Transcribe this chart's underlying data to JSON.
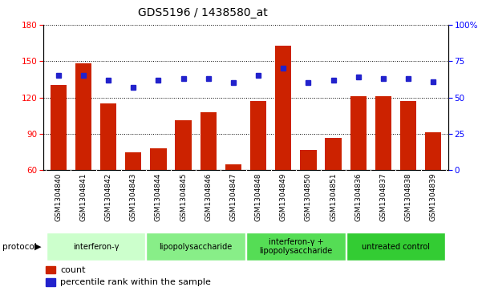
{
  "title": "GDS5196 / 1438580_at",
  "samples": [
    "GSM1304840",
    "GSM1304841",
    "GSM1304842",
    "GSM1304843",
    "GSM1304844",
    "GSM1304845",
    "GSM1304846",
    "GSM1304847",
    "GSM1304848",
    "GSM1304849",
    "GSM1304850",
    "GSM1304851",
    "GSM1304836",
    "GSM1304837",
    "GSM1304838",
    "GSM1304839"
  ],
  "counts": [
    130,
    148,
    115,
    75,
    78,
    101,
    108,
    65,
    117,
    163,
    77,
    87,
    121,
    121,
    117,
    91
  ],
  "percentiles": [
    65,
    65,
    62,
    57,
    62,
    63,
    63,
    60,
    65,
    70,
    60,
    62,
    64,
    63,
    63,
    61
  ],
  "ylim_left": [
    60,
    180
  ],
  "ylim_right": [
    0,
    100
  ],
  "yticks_left": [
    60,
    90,
    120,
    150,
    180
  ],
  "yticks_right": [
    0,
    25,
    50,
    75,
    100
  ],
  "ytick_right_labels": [
    "0",
    "25",
    "50",
    "75",
    "100%"
  ],
  "bar_color": "#CC2200",
  "dot_color": "#2222CC",
  "groups": [
    {
      "label": "interferon-γ",
      "start": 0,
      "end": 3,
      "color": "#CCFFCC"
    },
    {
      "label": "lipopolysaccharide",
      "start": 4,
      "end": 7,
      "color": "#88EE88"
    },
    {
      "label": "interferon-γ +\nlipopolysaccharide",
      "start": 8,
      "end": 11,
      "color": "#55DD55"
    },
    {
      "label": "untreated control",
      "start": 12,
      "end": 15,
      "color": "#33CC33"
    }
  ],
  "protocol_label": "protocol",
  "legend_count": "count",
  "legend_percentile": "percentile rank within the sample",
  "label_bg_color": "#D0D0D0",
  "plot_bg": "#FFFFFF",
  "fig_bg": "#FFFFFF"
}
